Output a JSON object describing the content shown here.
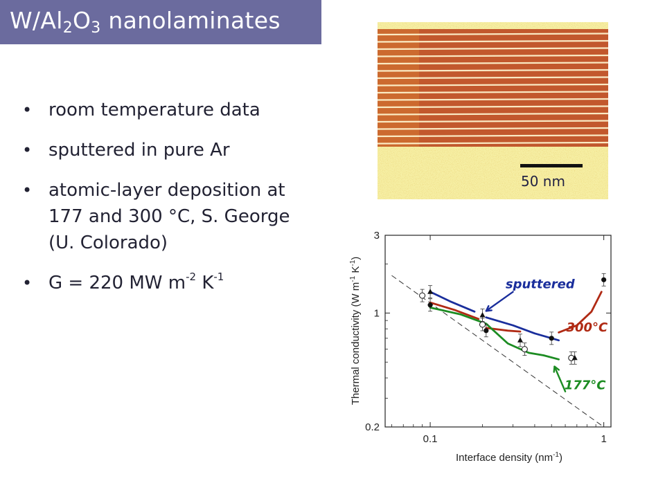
{
  "slide": {
    "title_main": "W/Al",
    "title_sub1": "2",
    "title_mid": "O",
    "title_sub2": "3",
    "title_end": " nanolaminates",
    "bullets": [
      {
        "text": "room temperature data"
      },
      {
        "text": "sputtered in pure Ar"
      },
      {
        "text": "atomic-layer deposition at 177 and 300 °C, S. George (U. Colorado)"
      },
      {
        "text_pre": "G = 220 MW m",
        "sup1": "-2",
        "text_mid": " K",
        "sup2": "-1"
      }
    ],
    "scale_bar_label": "50 nm"
  },
  "chart_data": {
    "type": "scatter",
    "x_scale": "log",
    "y_scale": "log",
    "xlim": [
      0.055,
      1.1
    ],
    "ylim": [
      0.2,
      3
    ],
    "xlabel": "Interface density (nm",
    "xlabel_sup": "-1",
    "xlabel_end": ")",
    "ylabel": "Thermal conductivity (W m",
    "ylabel_sup1": "-1",
    "ylabel_mid": " K",
    "ylabel_sup2": "-1",
    "ylabel_end": ")",
    "x_ticks": [
      {
        "value": 0.1,
        "label": "0.1"
      },
      {
        "value": 1,
        "label": "1"
      }
    ],
    "y_ticks": [
      {
        "value": 0.2,
        "label": "0.2"
      },
      {
        "value": 1,
        "label": "1"
      },
      {
        "value": 3,
        "label": "3"
      }
    ],
    "series": [
      {
        "marker": "filled-circle",
        "points": [
          {
            "x": 0.1,
            "y": 1.12
          },
          {
            "x": 0.21,
            "y": 0.78
          },
          {
            "x": 0.5,
            "y": 0.7
          },
          {
            "x": 1.0,
            "y": 1.6
          }
        ]
      },
      {
        "marker": "open-circle",
        "points": [
          {
            "x": 0.09,
            "y": 1.28
          },
          {
            "x": 0.2,
            "y": 0.85
          },
          {
            "x": 0.35,
            "y": 0.6
          },
          {
            "x": 0.65,
            "y": 0.53
          }
        ]
      },
      {
        "marker": "filled-triangle",
        "points": [
          {
            "x": 0.1,
            "y": 1.35
          },
          {
            "x": 0.2,
            "y": 0.97
          },
          {
            "x": 0.33,
            "y": 0.68
          },
          {
            "x": 0.68,
            "y": 0.53
          }
        ]
      }
    ],
    "guide_line": {
      "style": "dashed",
      "points": [
        {
          "x": 0.06,
          "y": 1.7
        },
        {
          "x": 1.0,
          "y": 0.2
        }
      ]
    },
    "hand_curves": [
      {
        "color": "#1a2e9c",
        "points": [
          {
            "x": 0.1,
            "y": 1.35
          },
          {
            "x": 0.13,
            "y": 1.18
          },
          {
            "x": 0.18,
            "y": 1.02
          }
        ]
      },
      {
        "color": "#1a2e9c",
        "points": [
          {
            "x": 0.21,
            "y": 0.94
          },
          {
            "x": 0.3,
            "y": 0.84
          },
          {
            "x": 0.4,
            "y": 0.75
          },
          {
            "x": 0.55,
            "y": 0.68
          }
        ]
      },
      {
        "color": "#b02a14",
        "points": [
          {
            "x": 0.1,
            "y": 1.16
          },
          {
            "x": 0.14,
            "y": 1.04
          },
          {
            "x": 0.19,
            "y": 0.92
          }
        ]
      },
      {
        "color": "#b02a14",
        "points": [
          {
            "x": 0.21,
            "y": 0.81
          },
          {
            "x": 0.28,
            "y": 0.78
          },
          {
            "x": 0.33,
            "y": 0.77
          }
        ]
      },
      {
        "color": "#b02a14",
        "points": [
          {
            "x": 0.55,
            "y": 0.76
          },
          {
            "x": 0.7,
            "y": 0.84
          },
          {
            "x": 0.85,
            "y": 1.02
          },
          {
            "x": 0.97,
            "y": 1.35
          }
        ]
      },
      {
        "color": "#1c8c22",
        "points": [
          {
            "x": 0.1,
            "y": 1.08
          },
          {
            "x": 0.15,
            "y": 0.98
          },
          {
            "x": 0.21,
            "y": 0.86
          },
          {
            "x": 0.28,
            "y": 0.65
          },
          {
            "x": 0.37,
            "y": 0.57
          },
          {
            "x": 0.45,
            "y": 0.55
          },
          {
            "x": 0.55,
            "y": 0.52
          }
        ]
      }
    ],
    "annotations": [
      {
        "text": "sputtered",
        "color": "#1a2e9c",
        "x": 0.43,
        "y": 1.42
      },
      {
        "text": "300°C",
        "color": "#b02a14",
        "x": 0.8,
        "y": 0.77
      },
      {
        "text": "177°C",
        "color": "#1c8c22",
        "x": 0.78,
        "y": 0.34
      }
    ],
    "colors": {
      "sputtered": "#1a2e9c",
      "ald_300C": "#b02a14",
      "ald_177C": "#1c8c22"
    }
  }
}
